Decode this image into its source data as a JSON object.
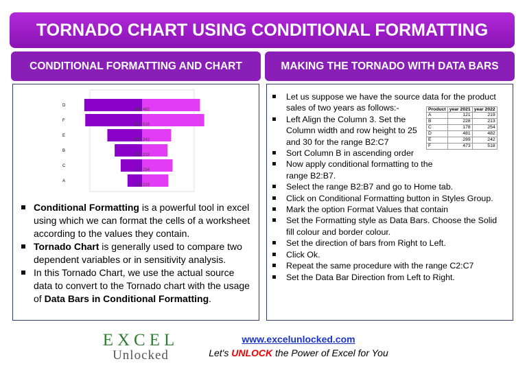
{
  "header": {
    "title": "TORNADO CHART USING CONDITIONAL FORMATTING"
  },
  "left": {
    "heading": "CONDITIONAL FORMATTING AND CHART",
    "chart": {
      "categories": [
        "D",
        "F",
        "E",
        "B",
        "C",
        "A"
      ],
      "series": [
        {
          "color": "#8a00c8",
          "values": [
            481,
            473,
            289,
            228,
            178,
            121
          ]
        },
        {
          "color": "#e23cf5",
          "values": [
            482,
            518,
            242,
            213,
            254,
            219
          ]
        }
      ]
    },
    "bullets": [
      [
        {
          "text": "Conditional Formatting",
          "bold": true
        },
        {
          "text": " is a powerful tool in excel using which we can format the cells of a worksheet according to the values they contain."
        }
      ],
      [
        {
          "text": "Tornado Chart",
          "bold": true
        },
        {
          "text": " is generally used to compare two dependent variables or in sensitivity analysis."
        }
      ],
      [
        {
          "text": "In this Tornado Chart, we use the actual source data to convert to the Tornado chart with the usage of "
        },
        {
          "text": "Data Bars in Conditional Formatting",
          "bold": true
        },
        {
          "text": "."
        }
      ]
    ]
  },
  "right": {
    "heading": "MAKING THE TORNADO WITH DATA BARS",
    "bullets": [
      "Let us suppose we have the source data for the product sales of two years as follows:-",
      "Left Align the Column 3. Set the Column width and row height to 25 and 30 for the range B2:C7",
      "Sort Column B in ascending order",
      "Now apply conditional formatting to the range B2:B7.",
      "Select the range B2:B7 and go to Home tab.",
      "Click on Conditional Formatting button in Styles Group.",
      "Mark the option Format Values that contain",
      "Set the Formatting style as Data Bars. Choose the Solid fill colour and border colour.",
      "Set the direction of bars from Right to Left.",
      "Click Ok.",
      "Repeat the same procedure with the range C2:C7",
      "Set the Data Bar Direction from Left to Right."
    ],
    "table": {
      "header": [
        "Product",
        "year 2021",
        "year 2022"
      ],
      "rows": [
        [
          "A",
          121,
          219
        ],
        [
          "B",
          228,
          213
        ],
        [
          "C",
          178,
          254
        ],
        [
          "D",
          481,
          482
        ],
        [
          "E",
          289,
          242
        ],
        [
          "F",
          473,
          518
        ]
      ]
    }
  },
  "footer": {
    "logo": [
      "EXCEL",
      "Unlocked"
    ],
    "url": "www.excelunlocked.com",
    "tagline": [
      {
        "text": "Let's "
      },
      {
        "text": "UNLOCK",
        "bold": true
      },
      {
        "text": " the Power of Excel for You"
      }
    ]
  }
}
